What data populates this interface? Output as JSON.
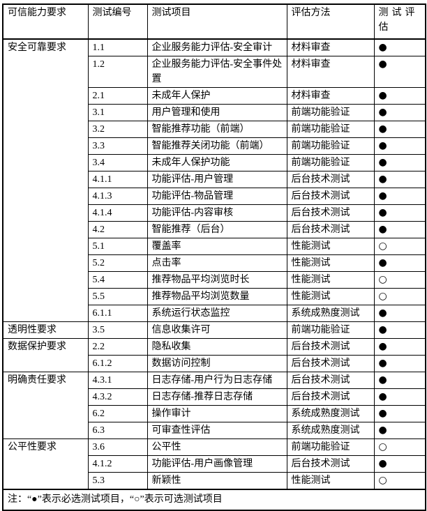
{
  "table": {
    "headers": [
      "可信能力要求",
      "测试编号",
      "测试项目",
      "评估方法",
      "测试评估"
    ],
    "groups": [
      {
        "label": "安全可靠要求",
        "rows": [
          {
            "no": "1.1",
            "item": "企业服务能力评估-安全审计",
            "method": "材料审查",
            "mark": "●"
          },
          {
            "no": "1.2",
            "item": "企业服务能力评估-安全事件处置",
            "method": "材料审查",
            "mark": "●"
          },
          {
            "no": "2.1",
            "item": "未成年人保护",
            "method": "材料审查",
            "mark": "●"
          },
          {
            "no": "3.1",
            "item": "用户管理和使用",
            "method": "前端功能验证",
            "mark": "●"
          },
          {
            "no": "3.2",
            "item": "智能推荐功能（前端）",
            "method": "前端功能验证",
            "mark": "●"
          },
          {
            "no": "3.3",
            "item": "智能推荐关闭功能（前端）",
            "method": "前端功能验证",
            "mark": "●"
          },
          {
            "no": "3.4",
            "item": "未成年人保护功能",
            "method": "前端功能验证",
            "mark": "●"
          },
          {
            "no": "4.1.1",
            "item": "功能评估-用户管理",
            "method": "后台技术测试",
            "mark": "●"
          },
          {
            "no": "4.1.3",
            "item": "功能评估-物品管理",
            "method": "后台技术测试",
            "mark": "●"
          },
          {
            "no": "4.1.4",
            "item": "功能评估-内容审核",
            "method": "后台技术测试",
            "mark": "●"
          },
          {
            "no": "4.2",
            "item": "智能推荐（后台）",
            "method": "后台技术测试",
            "mark": "●"
          },
          {
            "no": "5.1",
            "item": "覆盖率",
            "method": "性能测试",
            "mark": "○"
          },
          {
            "no": "5.2",
            "item": "点击率",
            "method": "性能测试",
            "mark": "●"
          },
          {
            "no": "5.4",
            "item": "推荐物品平均浏览时长",
            "method": "性能测试",
            "mark": "○"
          },
          {
            "no": "5.5",
            "item": "推荐物品平均浏览数量",
            "method": "性能测试",
            "mark": "○"
          },
          {
            "no": "6.1.1",
            "item": "系统运行状态监控",
            "method": "系统成熟度测试",
            "mark": "●"
          }
        ]
      },
      {
        "label": "透明性要求",
        "rows": [
          {
            "no": "3.5",
            "item": "信息收集许可",
            "method": "前端功能验证",
            "mark": "●"
          }
        ]
      },
      {
        "label": "数据保护要求",
        "rows": [
          {
            "no": "2.2",
            "item": "隐私收集",
            "method": "后台技术测试",
            "mark": "●"
          },
          {
            "no": "6.1.2",
            "item": "数据访问控制",
            "method": "后台技术测试",
            "mark": "●"
          }
        ]
      },
      {
        "label": "明确责任要求",
        "rows": [
          {
            "no": "4.3.1",
            "item": "日志存储-用户行为日志存储",
            "method": "后台技术测试",
            "mark": "●"
          },
          {
            "no": "4.3.2",
            "item": "日志存储-推荐日志存储",
            "method": "后台技术测试",
            "mark": "●"
          },
          {
            "no": "6.2",
            "item": "操作审计",
            "method": "系统成熟度测试",
            "mark": "●"
          },
          {
            "no": "6.3",
            "item": "可审查性评估",
            "method": "系统成熟度测试",
            "mark": "●"
          }
        ]
      },
      {
        "label": "公平性要求",
        "rows": [
          {
            "no": "3.6",
            "item": "公平性",
            "method": "前端功能验证",
            "mark": "○"
          },
          {
            "no": "4.1.2",
            "item": "功能评估-用户画像管理",
            "method": "后台技术测试",
            "mark": "●"
          },
          {
            "no": "5.3",
            "item": "新颖性",
            "method": "性能测试",
            "mark": "○"
          }
        ]
      }
    ],
    "note": "注：“●”表示必选测试项目，“○”表示可选测试项目",
    "legend": {
      "required_mark": "●",
      "optional_mark": "○"
    },
    "colors": {
      "border": "#000000",
      "text": "#000000",
      "background": "#ffffff"
    }
  }
}
